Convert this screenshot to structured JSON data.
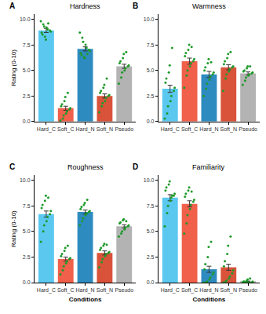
{
  "chart_data": [
    {
      "type": "bar",
      "title": "Hardness",
      "annotations": [
        "A"
      ],
      "y_label": "Rating (0-10)",
      "categories": [
        "Hard_C",
        "Soft_C",
        "Hard_N",
        "Soft_N",
        "Pseudo"
      ],
      "values": [
        8.9,
        1.3,
        7.1,
        2.5,
        5.4
      ],
      "error": [
        0.2,
        0.2,
        0.2,
        0.2,
        0.2
      ],
      "colors": [
        "#5bc8f0",
        "#f0604a",
        "#2e8bc0",
        "#d9533a",
        "#b3b3b3"
      ],
      "points": [
        [
          9.8,
          9.5,
          9.3,
          9.2,
          9.0,
          8.9,
          8.8,
          8.7,
          8.5,
          8.3,
          8.0,
          9.6
        ],
        [
          0.1,
          0.3,
          0.6,
          0.8,
          1.0,
          1.2,
          1.3,
          1.5,
          1.7,
          2.0,
          2.4,
          2.8
        ],
        [
          8.7,
          8.2,
          7.8,
          7.5,
          7.2,
          7.0,
          6.9,
          6.7,
          6.5,
          6.3,
          6.2,
          6.6
        ],
        [
          0.9,
          1.5,
          1.8,
          2.0,
          2.3,
          2.5,
          2.6,
          2.8,
          3.0,
          3.3,
          3.6,
          4.2
        ],
        [
          3.7,
          4.3,
          4.8,
          5.0,
          5.2,
          5.4,
          5.5,
          5.7,
          5.9,
          6.2,
          6.6,
          6.8
        ]
      ],
      "ylim": [
        0,
        10.5
      ],
      "yticks": [
        {
          "value": 0,
          "label": "0.0"
        },
        {
          "value": 2.5,
          "label": "2.5"
        },
        {
          "value": 5,
          "label": "5.0"
        },
        {
          "value": 7.5,
          "label": "7.5"
        },
        {
          "value": 10,
          "label": "10.0"
        }
      ],
      "grid": false
    },
    {
      "type": "bar",
      "title": "Warmness",
      "annotations": [
        "B"
      ],
      "categories": [
        "Hard_C",
        "Soft_C",
        "Hard_N",
        "Soft_N",
        "Pseudo"
      ],
      "values": [
        3.2,
        5.9,
        4.6,
        5.3,
        4.7
      ],
      "error": [
        0.35,
        0.3,
        0.3,
        0.25,
        0.15
      ],
      "colors": [
        "#5bc8f0",
        "#f0604a",
        "#2e8bc0",
        "#d9533a",
        "#b3b3b3"
      ],
      "points": [
        [
          0.3,
          0.8,
          1.5,
          2.0,
          2.5,
          3.0,
          3.3,
          3.8,
          4.2,
          4.8,
          5.5,
          7.2
        ],
        [
          3.3,
          4.5,
          5.0,
          5.4,
          5.7,
          5.9,
          6.1,
          6.4,
          6.7,
          7.0,
          7.5,
          7.3
        ],
        [
          2.5,
          3.2,
          3.7,
          4.1,
          4.4,
          4.6,
          4.8,
          5.0,
          5.3,
          5.7,
          6.1,
          5.8
        ],
        [
          3.0,
          4.2,
          4.6,
          4.9,
          5.1,
          5.3,
          5.4,
          5.6,
          5.9,
          6.2,
          6.6,
          6.8
        ],
        [
          3.6,
          4.0,
          4.3,
          4.5,
          4.6,
          4.7,
          4.8,
          4.9,
          5.0,
          5.2,
          5.4,
          5.4
        ]
      ],
      "ylim": [
        0,
        10.5
      ],
      "yticks": [
        {
          "value": 0,
          "label": "0.0"
        },
        {
          "value": 2.5,
          "label": "2.5"
        },
        {
          "value": 5,
          "label": "5.0"
        },
        {
          "value": 7.5,
          "label": "7.5"
        },
        {
          "value": 10,
          "label": "10.0"
        }
      ],
      "grid": false
    },
    {
      "type": "bar",
      "title": "Roughness",
      "annotations": [
        "C"
      ],
      "y_label": "Rating (0-10)",
      "x_label": "Conditions",
      "categories": [
        "Hard_C",
        "Soft_C",
        "Hard_N",
        "Soft_N",
        "Pseudo"
      ],
      "values": [
        6.7,
        2.3,
        6.9,
        2.9,
        5.5
      ],
      "error": [
        0.3,
        0.2,
        0.2,
        0.2,
        0.15
      ],
      "colors": [
        "#5bc8f0",
        "#f0604a",
        "#2e8bc0",
        "#d9533a",
        "#b3b3b3"
      ],
      "points": [
        [
          4.0,
          5.0,
          5.6,
          6.0,
          6.4,
          6.7,
          7.0,
          7.3,
          7.6,
          8.0,
          8.5,
          8.3
        ],
        [
          0.8,
          1.2,
          1.6,
          1.9,
          2.1,
          2.3,
          2.4,
          2.6,
          2.8,
          3.1,
          3.4,
          3.6
        ],
        [
          5.6,
          6.0,
          6.3,
          6.6,
          6.8,
          6.9,
          7.0,
          7.2,
          7.4,
          7.6,
          7.8,
          8.1
        ],
        [
          1.5,
          2.0,
          2.3,
          2.6,
          2.8,
          2.9,
          3.0,
          3.2,
          3.4,
          3.6,
          3.8,
          3.7
        ],
        [
          4.5,
          4.8,
          5.0,
          5.2,
          5.4,
          5.5,
          5.6,
          5.8,
          5.9,
          6.1,
          6.2,
          6.0
        ]
      ],
      "ylim": [
        0,
        10.5
      ],
      "yticks": [
        {
          "value": 0,
          "label": "0.0"
        },
        {
          "value": 2.5,
          "label": "2.5"
        },
        {
          "value": 5,
          "label": "5.0"
        },
        {
          "value": 7.5,
          "label": "7.5"
        },
        {
          "value": 10,
          "label": "10.0"
        }
      ],
      "grid": false
    },
    {
      "type": "bar",
      "title": "Familiarity",
      "annotations": [
        "D"
      ],
      "x_label": "Conditions",
      "categories": [
        "Hard_C",
        "Soft_C",
        "Hard_N",
        "Soft_N",
        "Pseudo"
      ],
      "values": [
        8.3,
        7.7,
        1.3,
        1.5,
        0.1
      ],
      "error": [
        0.3,
        0.3,
        0.3,
        0.3,
        0.05
      ],
      "colors": [
        "#5bc8f0",
        "#f0604a",
        "#2e8bc0",
        "#d9533a",
        "#b3b3b3"
      ],
      "points": [
        [
          5.5,
          6.8,
          7.5,
          8.0,
          8.3,
          8.5,
          8.7,
          9.0,
          9.3,
          9.6,
          9.9,
          8.5
        ],
        [
          4.8,
          5.8,
          6.6,
          7.2,
          7.6,
          7.9,
          8.1,
          8.4,
          8.7,
          9.0,
          9.3,
          8.9
        ],
        [
          0.0,
          0.0,
          0.1,
          0.3,
          0.5,
          0.8,
          1.0,
          1.3,
          1.8,
          2.5,
          3.5,
          4.0
        ],
        [
          0.0,
          0.1,
          0.2,
          0.4,
          0.6,
          0.9,
          1.2,
          1.6,
          2.1,
          2.8,
          3.6,
          4.5
        ],
        [
          0.0,
          0.0,
          0.0,
          0.0,
          0.0,
          0.0,
          0.1,
          0.1,
          0.1,
          0.2,
          0.3,
          0.4
        ]
      ],
      "ylim": [
        0,
        10.5
      ],
      "yticks": [
        {
          "value": 0,
          "label": "0.0"
        },
        {
          "value": 2.5,
          "label": "2.5"
        },
        {
          "value": 5,
          "label": "5.0"
        },
        {
          "value": 7.5,
          "label": "7.5"
        },
        {
          "value": 10,
          "label": "10.0"
        }
      ],
      "grid": false
    }
  ]
}
